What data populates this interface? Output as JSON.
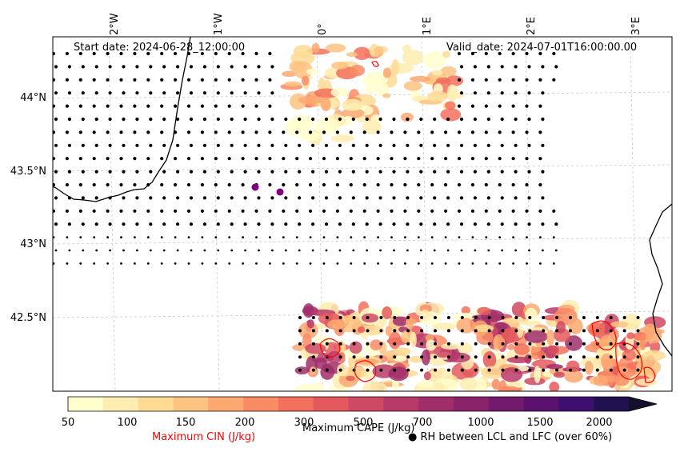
{
  "map": {
    "start_date": "Start date: 2024-06-28_12:00:00",
    "valid_date": "Valid_date: 2024-07-01T16:00:00.00",
    "lon_labels": [
      "2°W",
      "1°W",
      "0°",
      "1°E",
      "2°E",
      "3°E"
    ],
    "lat_labels": [
      "44°N",
      "43.5°N",
      "43°N",
      "42.5°N"
    ],
    "colors": {
      "coast": "#000000",
      "cin_contour": "#ff0000",
      "rh_marker": "#000000",
      "extra_marker": "#800080"
    }
  },
  "colorbar": {
    "ticks": [
      "50",
      "100",
      "150",
      "200",
      "300",
      "500",
      "700",
      "1000",
      "1500",
      "2000"
    ],
    "colors": [
      "#fffecc",
      "#feedb0",
      "#fedb95",
      "#fdc381",
      "#fca871",
      "#fa8c65",
      "#f3705c",
      "#e4595d",
      "#ce4963",
      "#b83a68",
      "#a02e6b",
      "#8a2369",
      "#721a6c",
      "#5a116f",
      "#3f0f6f",
      "#221150",
      "#13102b"
    ],
    "cape_label": "Maximum CAPE (J/kg)",
    "cin_label": "Maximum CIN (J/kg)",
    "rh_label": "● RH between LCL and LFC (over 60%)"
  }
}
